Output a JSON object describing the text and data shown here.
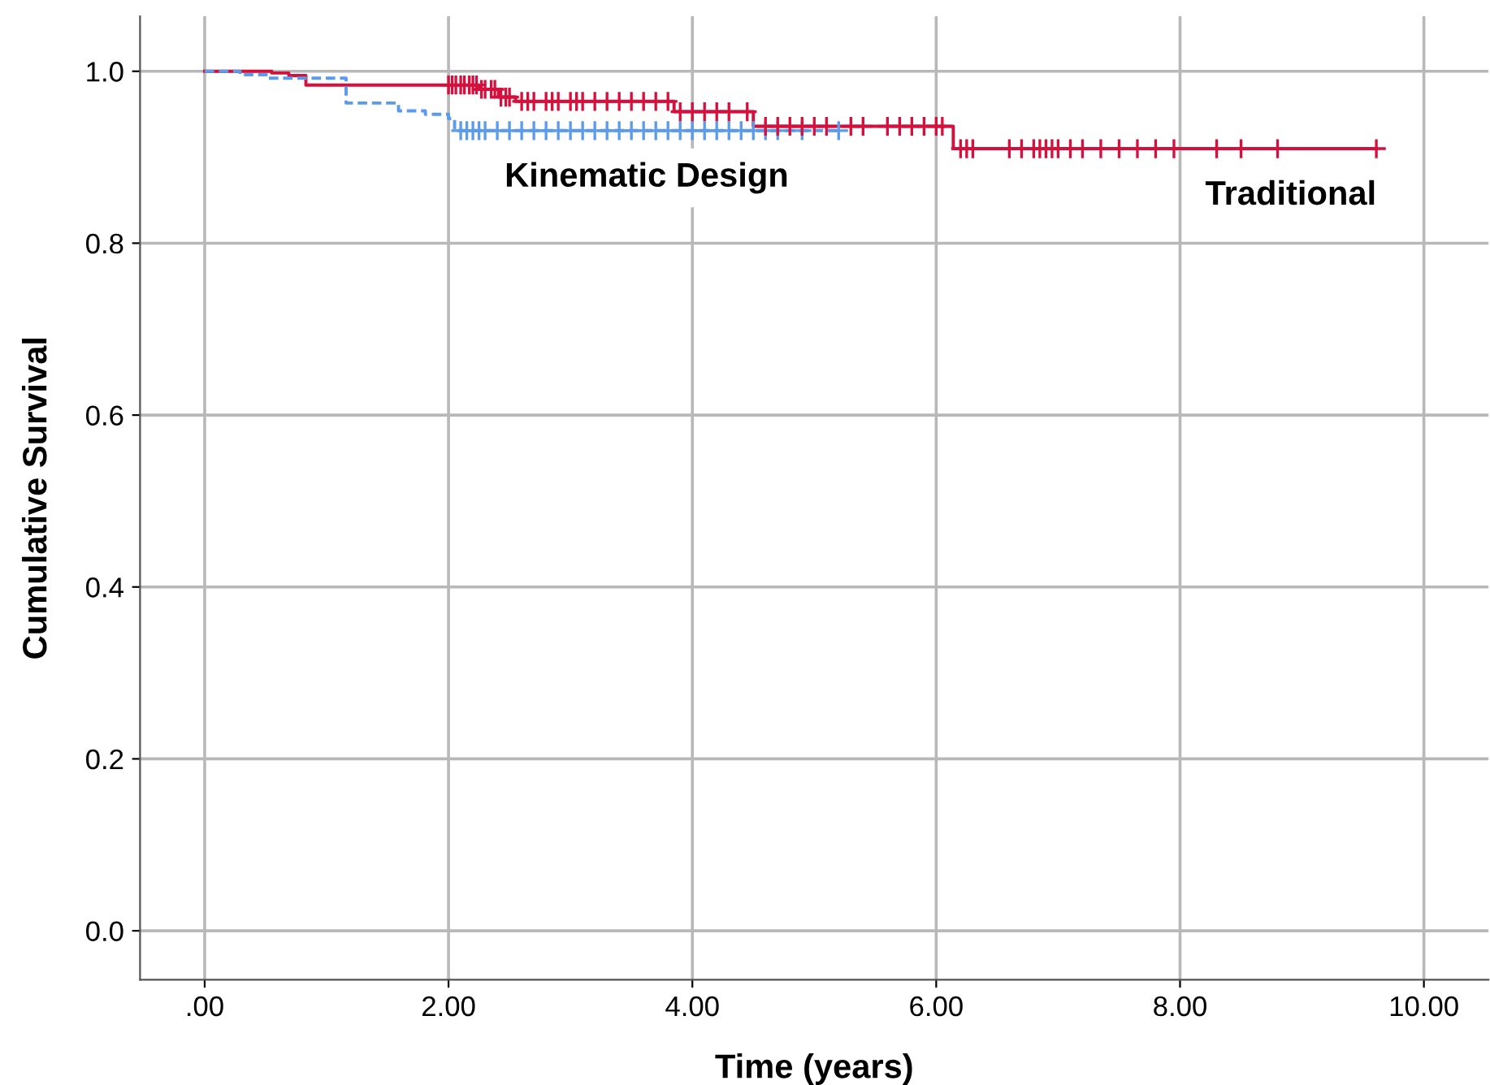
{
  "chart_data": {
    "type": "step",
    "xlabel": "Time (years)",
    "ylabel": "Cumulative Survival",
    "xlim": [
      -0.53,
      10.53
    ],
    "ylim": [
      -0.057,
      1.064
    ],
    "xticks": [
      {
        "value": 0,
        "label": ".00"
      },
      {
        "value": 2,
        "label": "2.00"
      },
      {
        "value": 4,
        "label": "4.00"
      },
      {
        "value": 6,
        "label": "6.00"
      },
      {
        "value": 8,
        "label": "8.00"
      },
      {
        "value": 10,
        "label": "10.00"
      }
    ],
    "yticks": [
      {
        "value": 0,
        "label": "0.0"
      },
      {
        "value": 0.2,
        "label": "0.2"
      },
      {
        "value": 0.4,
        "label": "0.4"
      },
      {
        "value": 0.6,
        "label": "0.6"
      },
      {
        "value": 0.8,
        "label": "0.8"
      },
      {
        "value": 1.0,
        "label": "1.0"
      }
    ],
    "grid": true,
    "legend": false,
    "series": [
      {
        "name": "Kinematic Design",
        "color": "#5b9bea",
        "line_style": "dashed",
        "marker": "none",
        "x": [
          0,
          0.29,
          0.52,
          1.16,
          1.59,
          1.81,
          2.0,
          2.05,
          5.2
        ],
        "values": [
          1.0,
          0.996,
          0.992,
          0.963,
          0.954,
          0.95,
          0.945,
          0.931,
          0.931
        ]
      },
      {
        "type": "scatter",
        "color": "#5b9bea",
        "marker": "cross",
        "x": [
          2.1,
          2.15,
          2.2,
          2.25,
          2.3,
          2.4,
          2.5,
          2.6,
          2.7,
          2.8,
          2.9,
          3.0,
          3.1,
          3.2,
          3.3,
          3.4,
          3.5,
          3.6,
          3.7,
          3.8,
          3.9,
          4.0,
          4.1,
          4.2,
          4.3,
          4.4,
          4.5,
          4.6,
          4.7,
          4.9,
          5.2
        ],
        "values": [
          0.931,
          0.931,
          0.931,
          0.931,
          0.931,
          0.931,
          0.931,
          0.931,
          0.931,
          0.931,
          0.931,
          0.931,
          0.931,
          0.931,
          0.931,
          0.931,
          0.931,
          0.931,
          0.931,
          0.931,
          0.931,
          0.931,
          0.931,
          0.931,
          0.931,
          0.931,
          0.931,
          0.931,
          0.931,
          0.931,
          0.931
        ]
      },
      {
        "name": "Traditional",
        "color": "#d6103c",
        "line_style": "solid",
        "marker": "none",
        "x": [
          0,
          0.55,
          0.69,
          0.83,
          2.25,
          2.41,
          2.55,
          3.85,
          4.5,
          6.14,
          9.61
        ],
        "values": [
          1.0,
          0.998,
          0.995,
          0.984,
          0.979,
          0.97,
          0.965,
          0.953,
          0.936,
          0.91,
          0.91
        ]
      },
      {
        "type": "scatter",
        "color": "#d6103c",
        "marker": "cross",
        "x": [
          2.0,
          2.03,
          2.06,
          2.1,
          2.13,
          2.17,
          2.2,
          2.23,
          2.27,
          2.3,
          2.35,
          2.38,
          2.43,
          2.47,
          2.5,
          2.6,
          2.65,
          2.7,
          2.8,
          2.85,
          2.9,
          3.0,
          3.05,
          3.1,
          3.2,
          3.3,
          3.4,
          3.5,
          3.6,
          3.7,
          3.8,
          3.9,
          4.0,
          4.1,
          4.2,
          4.3,
          4.45,
          4.6,
          4.7,
          4.8,
          4.9,
          5.0,
          5.1,
          5.3,
          5.4,
          5.6,
          5.7,
          5.8,
          5.9,
          6.0,
          6.05,
          6.2,
          6.25,
          6.3,
          6.6,
          6.7,
          6.8,
          6.85,
          6.9,
          6.95,
          7.0,
          7.1,
          7.2,
          7.35,
          7.5,
          7.65,
          7.8,
          7.95,
          8.3,
          8.5,
          8.8,
          9.61
        ],
        "values": [
          0.984,
          0.984,
          0.984,
          0.984,
          0.984,
          0.984,
          0.984,
          0.984,
          0.979,
          0.979,
          0.979,
          0.979,
          0.97,
          0.97,
          0.97,
          0.965,
          0.965,
          0.965,
          0.965,
          0.965,
          0.965,
          0.965,
          0.965,
          0.965,
          0.965,
          0.965,
          0.965,
          0.965,
          0.965,
          0.965,
          0.965,
          0.953,
          0.953,
          0.953,
          0.953,
          0.953,
          0.953,
          0.936,
          0.936,
          0.936,
          0.936,
          0.936,
          0.936,
          0.936,
          0.936,
          0.936,
          0.936,
          0.936,
          0.936,
          0.936,
          0.936,
          0.91,
          0.91,
          0.91,
          0.91,
          0.91,
          0.91,
          0.91,
          0.91,
          0.91,
          0.91,
          0.91,
          0.91,
          0.91,
          0.91,
          0.91,
          0.91,
          0.91,
          0.91,
          0.91,
          0.91,
          0.91
        ]
      }
    ]
  }
}
